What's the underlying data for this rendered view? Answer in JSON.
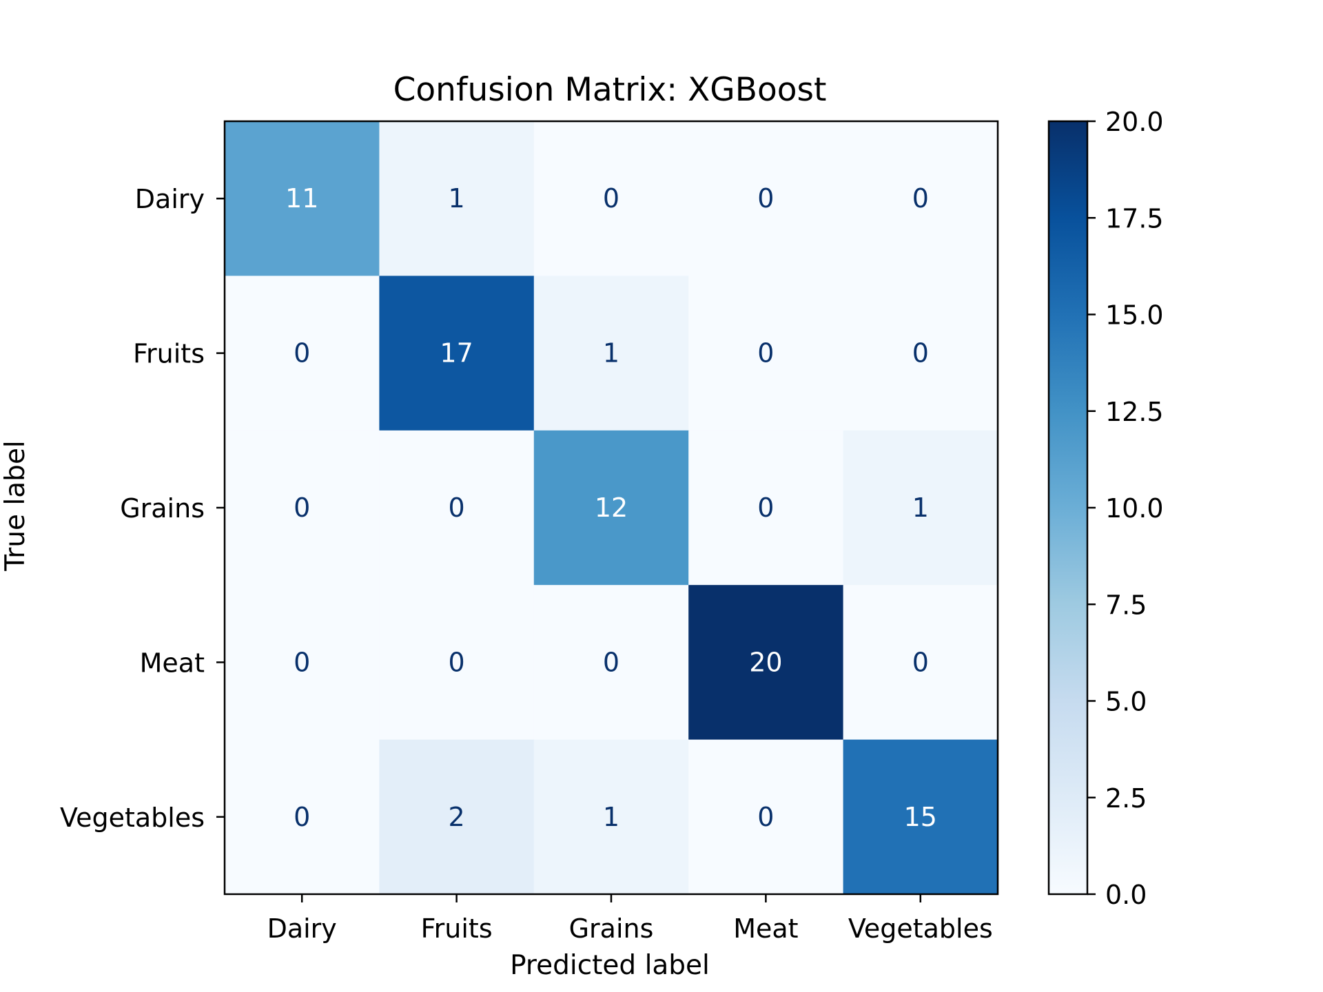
{
  "chart_data": {
    "type": "heatmap",
    "title": "Confusion Matrix: XGBoost",
    "xlabel": "Predicted label",
    "ylabel": "True label",
    "x_categories": [
      "Dairy",
      "Fruits",
      "Grains",
      "Meat",
      "Vegetables"
    ],
    "y_categories": [
      "Dairy",
      "Fruits",
      "Grains",
      "Meat",
      "Vegetables"
    ],
    "matrix": [
      [
        11,
        1,
        0,
        0,
        0
      ],
      [
        0,
        17,
        1,
        0,
        0
      ],
      [
        0,
        0,
        12,
        0,
        1
      ],
      [
        0,
        0,
        0,
        20,
        0
      ],
      [
        0,
        2,
        1,
        0,
        15
      ]
    ],
    "colorbar": {
      "min": 0.0,
      "max": 20.0,
      "ticks": [
        "0.0",
        "2.5",
        "5.0",
        "7.5",
        "10.0",
        "12.5",
        "15.0",
        "17.5",
        "20.0"
      ],
      "colormap": "Blues",
      "color_stops": [
        "#f7fbff",
        "#deebf7",
        "#c6dbef",
        "#9ecae1",
        "#6baed6",
        "#4292c6",
        "#2171b5",
        "#08519c",
        "#08306b"
      ]
    },
    "text_colors": {
      "dark": "#08306b",
      "light": "#ffffff"
    }
  }
}
